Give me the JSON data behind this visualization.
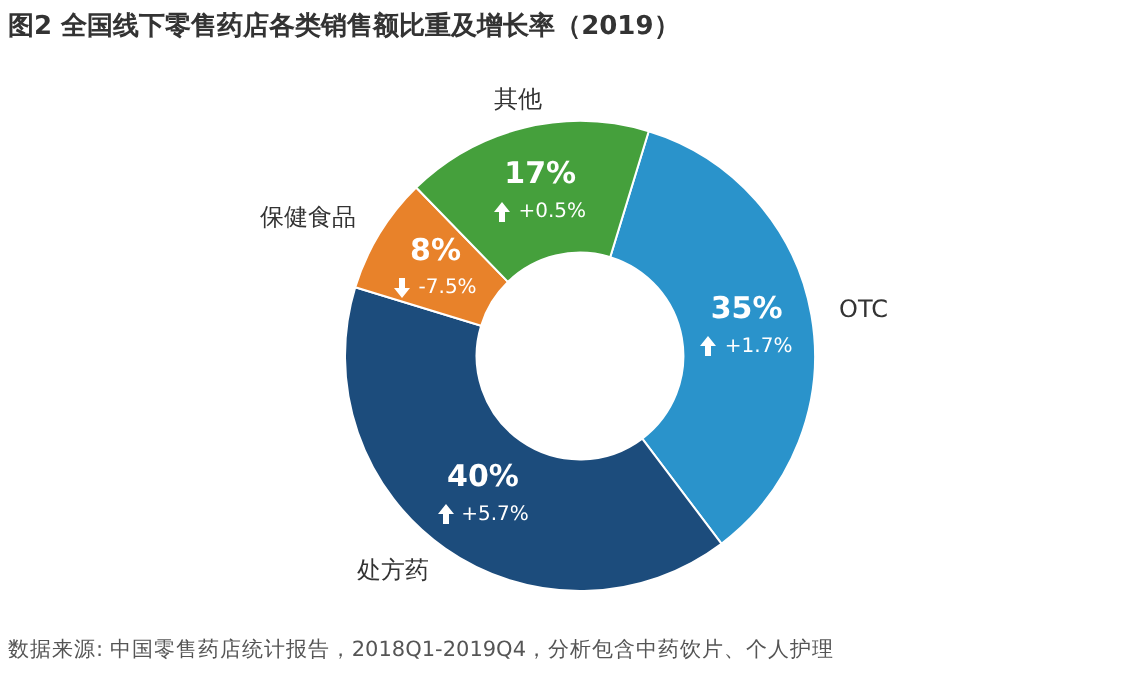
{
  "chart_data": {
    "type": "donut",
    "title": "图2 全国线下零售药店各类销售额比重及增长率（2019）",
    "categories": [
      "OTC",
      "处方药",
      "保健食品",
      "其他"
    ],
    "values": [
      35,
      40,
      8,
      17
    ],
    "colors": [
      "#2a93cb",
      "#1c4c7c",
      "#e8822a",
      "#45a03c"
    ],
    "value_labels": [
      "35%",
      "40%",
      "8%",
      "17%"
    ],
    "legend": false,
    "annotations": [
      {
        "text": "+1.7%",
        "x": "OTC"
      },
      {
        "text": "+5.7%",
        "x": "处方药"
      },
      {
        "text": "-7.5%",
        "x": "保健食品"
      },
      {
        "text": "+0.5%",
        "x": "其他"
      },
      "数据来源: 中国零售药店统计报告，2018Q1-2019Q4，分析包含中药饮片、个人护理"
    ]
  }
}
